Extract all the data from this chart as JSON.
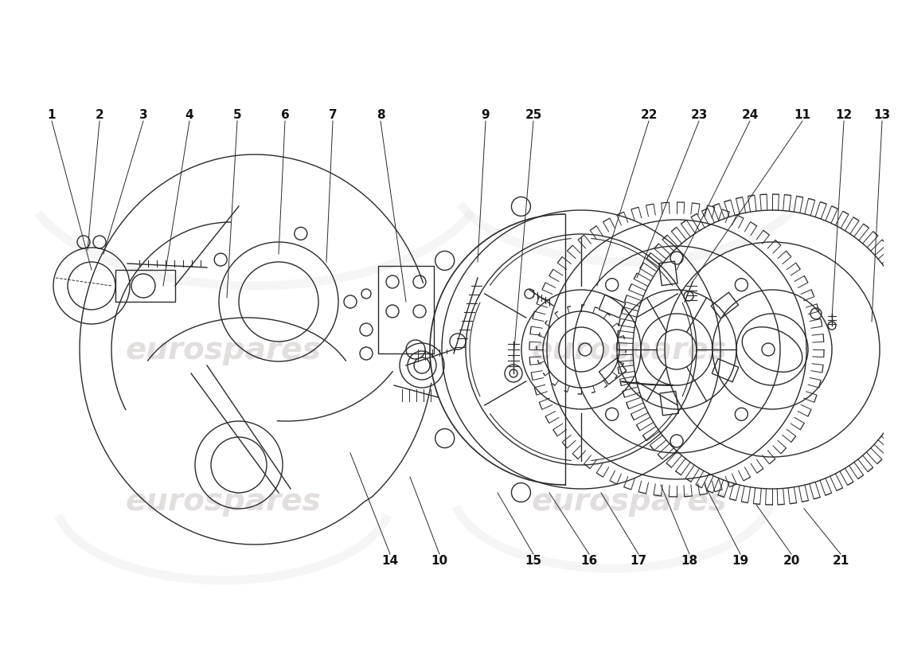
{
  "background_color": "#ffffff",
  "watermark_color": "#d8d0d0",
  "watermark_text": "eurospares",
  "line_color": "#2a2a2a",
  "label_color": "#111111",
  "top_labels": [
    [
      "1",
      55,
      115
    ],
    [
      "2",
      110,
      115
    ],
    [
      "3",
      165,
      115
    ],
    [
      "4",
      225,
      115
    ],
    [
      "5",
      285,
      115
    ],
    [
      "6",
      345,
      115
    ],
    [
      "7",
      405,
      115
    ],
    [
      "8",
      465,
      115
    ],
    [
      "9",
      600,
      115
    ],
    [
      "25",
      655,
      115
    ],
    [
      "22",
      800,
      115
    ],
    [
      "23",
      865,
      115
    ],
    [
      "24",
      930,
      115
    ],
    [
      "11",
      995,
      115
    ],
    [
      "12",
      1050,
      115
    ],
    [
      "13",
      1100,
      115
    ]
  ],
  "bottom_labels": [
    [
      "14",
      480,
      695
    ],
    [
      "10",
      540,
      695
    ],
    [
      "15",
      660,
      695
    ],
    [
      "16",
      730,
      695
    ],
    [
      "17",
      790,
      695
    ],
    [
      "18",
      855,
      695
    ],
    [
      "19",
      920,
      695
    ],
    [
      "20",
      985,
      695
    ],
    [
      "21",
      1045,
      695
    ]
  ]
}
